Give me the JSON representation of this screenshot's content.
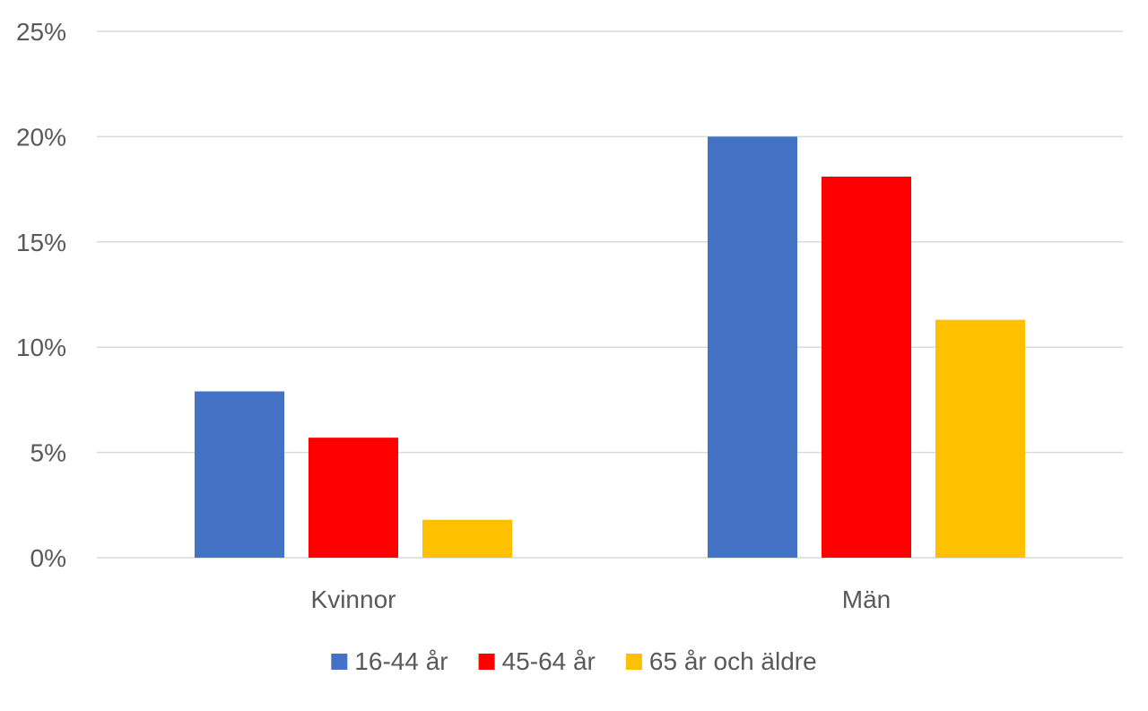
{
  "chart_data": {
    "type": "bar",
    "title": "",
    "xlabel": "",
    "ylabel": "",
    "categories": [
      "Kvinnor",
      "Män"
    ],
    "series": [
      {
        "name": "16-44 år",
        "color": "#4472C4",
        "values": [
          7.9,
          20.0
        ]
      },
      {
        "name": "45-64 år",
        "color": "#FF0000",
        "values": [
          5.7,
          18.1
        ]
      },
      {
        "name": "65 år och äldre",
        "color": "#FFC000",
        "values": [
          1.8,
          11.3
        ]
      }
    ],
    "ylim": [
      0,
      25
    ],
    "y_ticks": [
      "0%",
      "5%",
      "10%",
      "15%",
      "20%",
      "25%"
    ],
    "y_tick_values": [
      0,
      5,
      10,
      15,
      20,
      25
    ],
    "grid": true,
    "legend_position": "bottom"
  }
}
